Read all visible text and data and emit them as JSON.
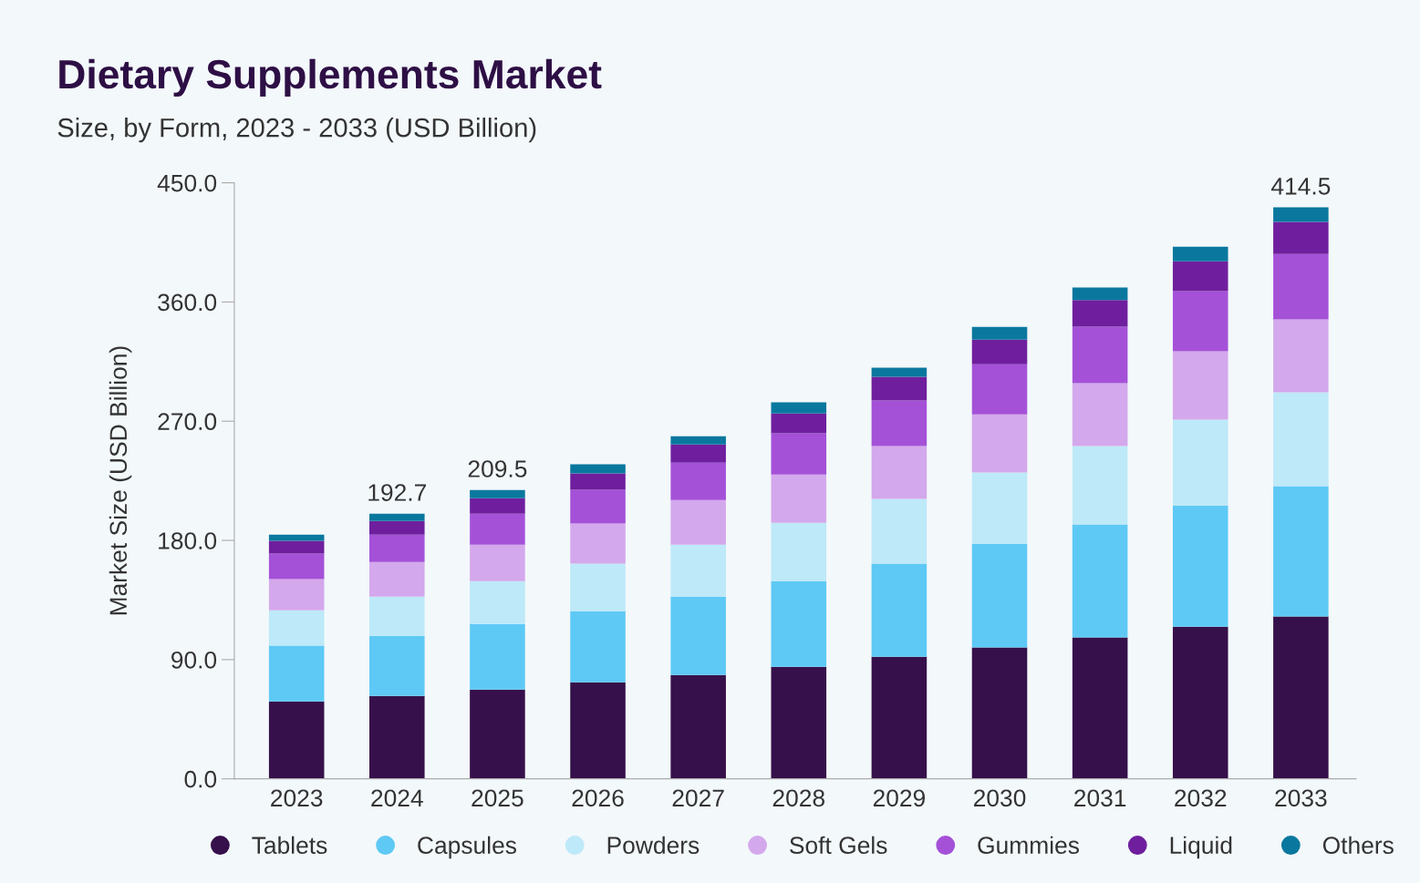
{
  "chart_data": {
    "type": "bar",
    "stacked": true,
    "title": "Dietary Supplements Market",
    "subtitle": "Size, by Form, 2023 - 2033 (USD Billion)",
    "ylabel": "Market Size (USD Billion)",
    "categories": [
      "2023",
      "2024",
      "2025",
      "2026",
      "2027",
      "2028",
      "2029",
      "2030",
      "2031",
      "2032",
      "2033"
    ],
    "series": [
      {
        "name": "Tablets",
        "color": "#36104a",
        "values": [
          58.5,
          62.6,
          67.4,
          72.9,
          78.4,
          84.6,
          92.2,
          99.1,
          106.7,
          114.9,
          122.5
        ]
      },
      {
        "name": "Capsules",
        "color": "#5ec9f5",
        "values": [
          42.0,
          45.4,
          49.5,
          53.7,
          59.2,
          64.7,
          70.2,
          78.4,
          85.3,
          91.5,
          98.4
        ]
      },
      {
        "name": "Powders",
        "color": "#bde9f8",
        "values": [
          26.8,
          29.6,
          32.3,
          35.8,
          39.2,
          44.0,
          48.9,
          53.7,
          59.2,
          64.7,
          70.9
        ]
      },
      {
        "name": "Soft Gels",
        "color": "#d4a8ec",
        "values": [
          23.4,
          26.1,
          27.5,
          30.3,
          33.7,
          36.5,
          39.9,
          44.0,
          47.5,
          51.6,
          55.0
        ]
      },
      {
        "name": "Gummies",
        "color": "#a451d8",
        "values": [
          19.3,
          20.6,
          23.4,
          25.5,
          28.2,
          31.0,
          34.4,
          37.8,
          42.7,
          45.4,
          49.5
        ]
      },
      {
        "name": "Liquid",
        "color": "#6f1f9e",
        "values": [
          9.6,
          10.3,
          11.7,
          12.4,
          13.8,
          15.1,
          17.9,
          18.6,
          20.0,
          22.7,
          24.1
        ]
      },
      {
        "name": "Others",
        "color": "#0a789e",
        "values": [
          4.8,
          5.5,
          6.2,
          6.9,
          6.2,
          8.3,
          6.9,
          9.6,
          9.6,
          11.0,
          11.0
        ]
      }
    ],
    "annotations": [
      "192.7",
      "209.5",
      "414.5"
    ],
    "ylim": [
      0,
      450
    ],
    "yticks": [
      {
        "value": 0,
        "label": "0.0"
      },
      {
        "value": 90,
        "label": "90.0"
      },
      {
        "value": 180,
        "label": "180.0"
      },
      {
        "value": 270,
        "label": "270.0"
      },
      {
        "value": 360,
        "label": "360.0"
      },
      {
        "value": 450,
        "label": "450.0"
      }
    ],
    "legend": "bottom",
    "marker": "circle",
    "grid": false
  }
}
